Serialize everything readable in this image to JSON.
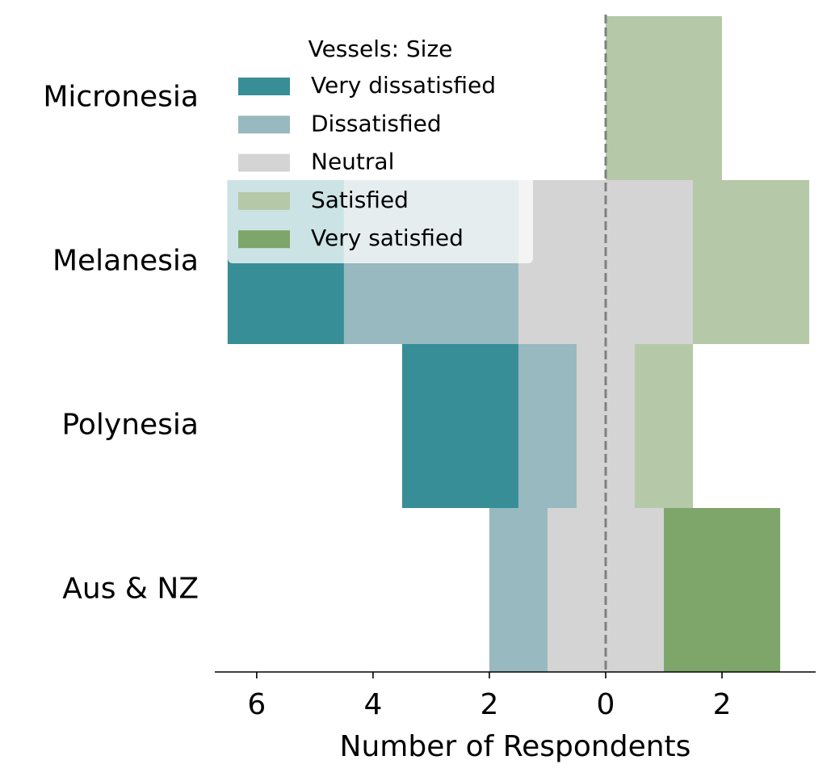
{
  "chart_data": {
    "type": "diverging_bar",
    "xlabel": "Number of Respondents",
    "legend_title": "Vessels: Size",
    "legend": "upper left",
    "categories": [
      "Micronesia",
      "Melanesia",
      "Polynesia",
      "Aus & NZ"
    ],
    "series": [
      {
        "name": "Very dissatisfied",
        "color": "#378e96",
        "values": [
          0,
          2,
          2,
          0
        ]
      },
      {
        "name": "Dissatisfied",
        "color": "#97b9bf",
        "values": [
          0,
          3,
          1,
          1
        ]
      },
      {
        "name": "Neutral",
        "color": "#d4d4d4",
        "values": [
          0,
          3,
          1,
          2
        ]
      },
      {
        "name": "Satisfied",
        "color": "#b5c9a9",
        "values": [
          2,
          2,
          1,
          0
        ]
      },
      {
        "name": "Very satisfied",
        "color": "#7ea66a",
        "values": [
          0,
          0,
          0,
          2
        ]
      }
    ],
    "xlim": [
      -6.72,
      3.61
    ],
    "xticks": [
      {
        "value": -6,
        "label": "6"
      },
      {
        "value": -4,
        "label": "4"
      },
      {
        "value": -2,
        "label": "2"
      },
      0,
      2
    ]
  }
}
